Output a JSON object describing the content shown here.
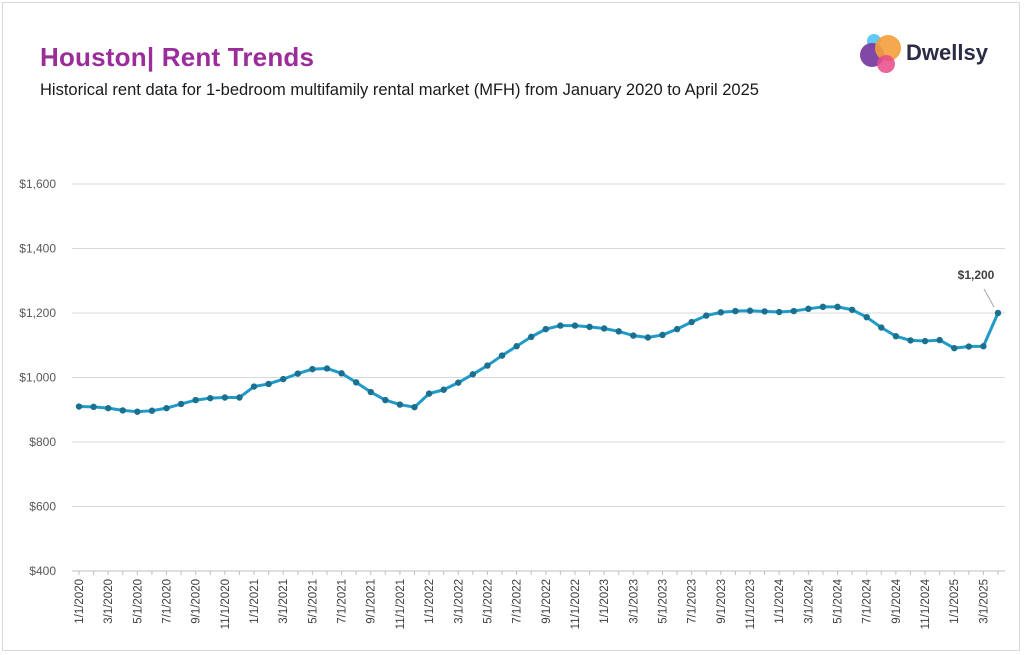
{
  "header": {
    "title": "Houston| Rent Trends",
    "subtitle": "Historical rent data for 1-bedroom multifamily rental market (MFH) from January 2020 to April 2025"
  },
  "logo": {
    "text": "Dwellsy",
    "colors": [
      "#5b6ee1",
      "#7a3fa0",
      "#f59e3b",
      "#e84a8a",
      "#4fc3f7"
    ]
  },
  "chart_data": {
    "type": "line",
    "title": "",
    "xlabel": "",
    "ylabel": "",
    "ylim": [
      400,
      1600
    ],
    "yticks": [
      400,
      600,
      800,
      1000,
      1200,
      1400,
      1600
    ],
    "ytick_labels": [
      "$400",
      "$600",
      "$800",
      "$1,000",
      "$1,200",
      "$1,400",
      "$1,600"
    ],
    "grid": true,
    "line_color": "#1f9ac9",
    "marker_color": "#1b6f8f",
    "x": [
      "1/1/2020",
      "2/1/2020",
      "3/1/2020",
      "4/1/2020",
      "5/1/2020",
      "6/1/2020",
      "7/1/2020",
      "8/1/2020",
      "9/1/2020",
      "10/1/2020",
      "11/1/2020",
      "12/1/2020",
      "1/1/2021",
      "2/1/2021",
      "3/1/2021",
      "4/1/2021",
      "5/1/2021",
      "6/1/2021",
      "7/1/2021",
      "8/1/2021",
      "9/1/2021",
      "10/1/2021",
      "11/1/2021",
      "12/1/2021",
      "1/1/2022",
      "2/1/2022",
      "3/1/2022",
      "4/1/2022",
      "5/1/2022",
      "6/1/2022",
      "7/1/2022",
      "8/1/2022",
      "9/1/2022",
      "10/1/2022",
      "11/1/2022",
      "12/1/2022",
      "1/1/2023",
      "2/1/2023",
      "3/1/2023",
      "4/1/2023",
      "5/1/2023",
      "6/1/2023",
      "7/1/2023",
      "8/1/2023",
      "9/1/2023",
      "10/1/2023",
      "11/1/2023",
      "12/1/2023",
      "1/1/2024",
      "2/1/2024",
      "3/1/2024",
      "4/1/2024",
      "5/1/2024",
      "6/1/2024",
      "7/1/2024",
      "8/1/2024",
      "9/1/2024",
      "10/1/2024",
      "11/1/2024",
      "12/1/2024",
      "1/1/2025",
      "2/1/2025",
      "3/1/2025",
      "4/1/2025"
    ],
    "x_tick_labels": [
      "1/1/2020",
      "3/1/2020",
      "5/1/2020",
      "7/1/2020",
      "9/1/2020",
      "11/1/2020",
      "1/1/2021",
      "3/1/2021",
      "5/1/2021",
      "7/1/2021",
      "9/1/2021",
      "11/1/2021",
      "1/1/2022",
      "3/1/2022",
      "5/1/2022",
      "7/1/2022",
      "9/1/2022",
      "11/1/2022",
      "1/1/2023",
      "3/1/2023",
      "5/1/2023",
      "7/1/2023",
      "9/1/2023",
      "11/1/2023",
      "1/1/2024",
      "3/1/2024",
      "5/1/2024",
      "7/1/2024",
      "9/1/2024",
      "11/1/2024",
      "1/1/2025",
      "3/1/2025"
    ],
    "series": [
      {
        "values": [
          910,
          909,
          905,
          898,
          894,
          897,
          905,
          918,
          930,
          936,
          938,
          938,
          972,
          980,
          995,
          1012,
          1026,
          1028,
          1013,
          985,
          955,
          930,
          916,
          908,
          950,
          962,
          984,
          1010,
          1037,
          1068,
          1097,
          1126,
          1150,
          1161,
          1161,
          1157,
          1152,
          1143,
          1130,
          1124,
          1132,
          1150,
          1172,
          1192,
          1202,
          1206,
          1207,
          1205,
          1203,
          1206,
          1213,
          1219,
          1219,
          1210,
          1187,
          1155,
          1128,
          1115,
          1113,
          1116,
          1091,
          1096,
          1097,
          1200
        ]
      }
    ],
    "annotation": {
      "text": "$1,200",
      "x": "4/1/2025",
      "y": 1200
    }
  }
}
